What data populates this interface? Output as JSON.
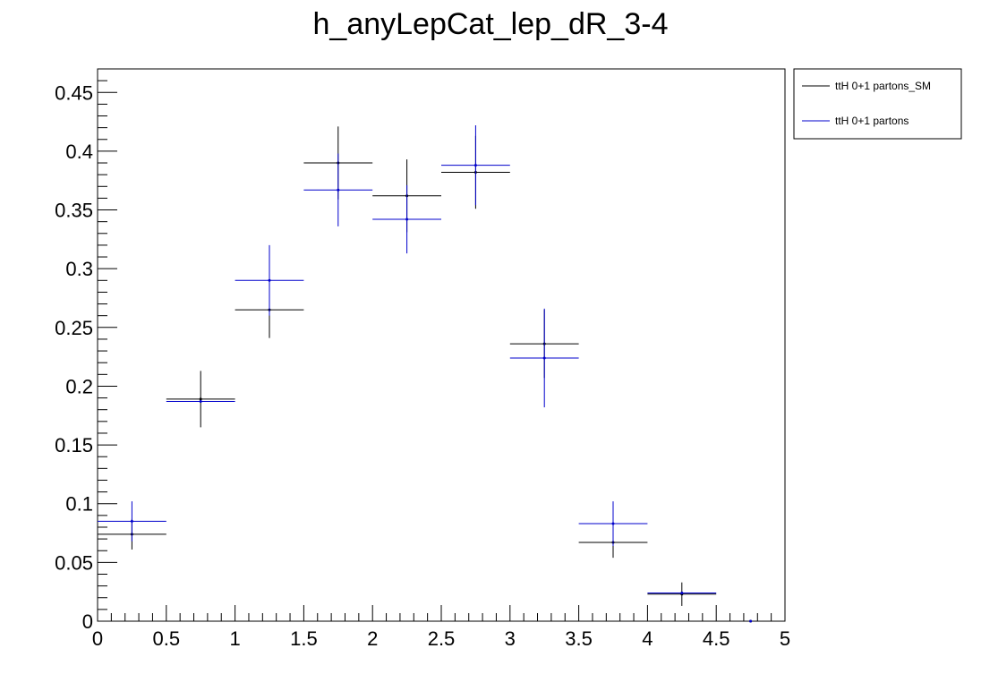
{
  "chart_data": {
    "type": "scatter",
    "title": "h_anyLepCat_lep_dR_3-4",
    "xlabel": "",
    "ylabel": "",
    "xlim": [
      0,
      5
    ],
    "ylim": [
      0,
      0.47
    ],
    "x_major_ticks": [
      0,
      0.5,
      1,
      1.5,
      2,
      2.5,
      3,
      3.5,
      4,
      4.5,
      5
    ],
    "x_tick_labels": [
      "0",
      "0.5",
      "1",
      "1.5",
      "2",
      "2.5",
      "3",
      "3.5",
      "4",
      "4.5",
      "5"
    ],
    "y_major_ticks": [
      0,
      0.05,
      0.1,
      0.15,
      0.2,
      0.25,
      0.3,
      0.35,
      0.4,
      0.45
    ],
    "y_tick_labels": [
      "0",
      "0.05",
      "0.1",
      "0.15",
      "0.2",
      "0.25",
      "0.3",
      "0.35",
      "0.4",
      "0.45"
    ],
    "grid": false,
    "legend_position": "outside-top-right",
    "bin_width": 0.5,
    "series": [
      {
        "name": "ttH 0+1 partons_SM",
        "color": "#000000",
        "x": [
          0.25,
          0.75,
          1.25,
          1.75,
          2.25,
          2.75,
          3.25,
          3.75,
          4.25,
          4.75
        ],
        "y": [
          0.074,
          0.189,
          0.265,
          0.39,
          0.362,
          0.382,
          0.236,
          0.067,
          0.023,
          0.0
        ],
        "yerr": [
          0.013,
          0.024,
          0.024,
          0.031,
          0.031,
          0.031,
          0.029,
          0.013,
          0.01,
          0.0
        ]
      },
      {
        "name": "ttH 0+1 partons",
        "color": "#0000cc",
        "x": [
          0.25,
          0.75,
          1.25,
          1.75,
          2.25,
          2.75,
          3.25,
          3.75,
          4.25,
          4.75
        ],
        "y": [
          0.085,
          0.187,
          0.29,
          0.367,
          0.342,
          0.388,
          0.224,
          0.083,
          0.024,
          0.0
        ],
        "yerr": [
          0.017,
          0.0,
          0.03,
          0.031,
          0.029,
          0.034,
          0.042,
          0.019,
          0.0,
          0.0
        ]
      }
    ]
  }
}
